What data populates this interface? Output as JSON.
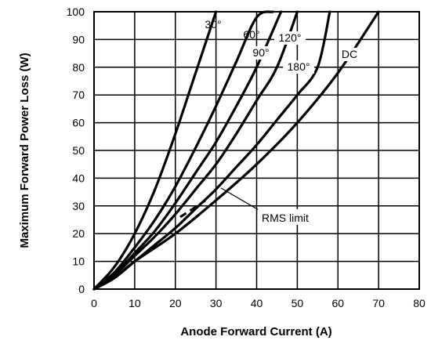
{
  "chart_data": {
    "type": "line",
    "title": "",
    "xlabel": "Anode Forward Current (A)",
    "ylabel": "Maximum Forward Power Loss (W)",
    "xlim": [
      0,
      80
    ],
    "ylim": [
      0,
      100
    ],
    "x_ticks": [
      "0",
      "10",
      "20",
      "30",
      "40",
      "50",
      "60",
      "70",
      "80"
    ],
    "y_ticks": [
      "0",
      "10",
      "20",
      "30",
      "40",
      "50",
      "60",
      "70",
      "80",
      "90",
      "100"
    ],
    "grid": true,
    "series": [
      {
        "name": "30°",
        "x": [
          0,
          5,
          10,
          15,
          20,
          25,
          30
        ],
        "y": [
          0,
          8,
          20,
          36,
          56,
          78,
          100
        ]
      },
      {
        "name": "60°",
        "x": [
          0,
          5,
          10,
          15,
          20,
          25,
          30,
          35,
          40,
          44
        ],
        "y": [
          0,
          6,
          15,
          25,
          37,
          51,
          66,
          82,
          98,
          100
        ]
      },
      {
        "name": "90°",
        "x": [
          0,
          5,
          10,
          15,
          20,
          25,
          30,
          35,
          40,
          46
        ],
        "y": [
          0,
          5,
          13,
          21,
          31,
          42,
          53,
          66,
          80,
          100
        ]
      },
      {
        "name": "120°",
        "x": [
          0,
          5,
          10,
          15,
          20,
          25,
          30,
          35,
          40,
          45,
          50
        ],
        "y": [
          0,
          5,
          12,
          19,
          27,
          36,
          45,
          56,
          68,
          80,
          100
        ]
      },
      {
        "name": "180°",
        "x": [
          0,
          5,
          10,
          15,
          20,
          25,
          30,
          35,
          40,
          45,
          50,
          55,
          58
        ],
        "y": [
          0,
          4,
          10,
          16,
          22,
          29,
          36,
          44,
          52,
          61,
          70,
          80,
          100
        ]
      },
      {
        "name": "DC",
        "x": [
          0,
          5,
          10,
          20,
          30,
          40,
          50,
          60,
          70
        ],
        "y": [
          0,
          4,
          10,
          20,
          32,
          45,
          60,
          78,
          100
        ]
      }
    ],
    "annotations": [
      {
        "text": "RMS limit",
        "x": 40,
        "y": 25
      }
    ]
  }
}
